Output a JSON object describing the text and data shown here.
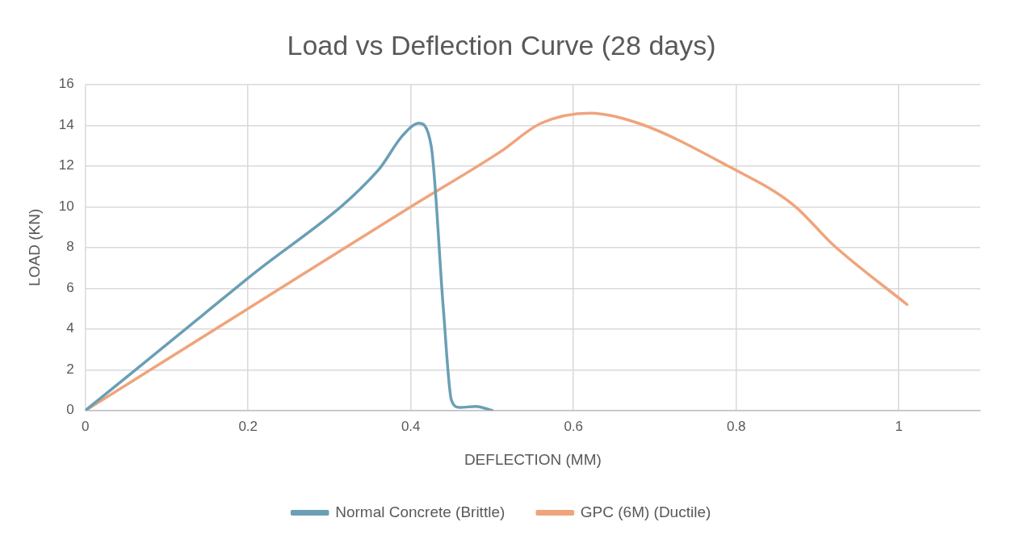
{
  "chart_data": {
    "type": "line",
    "title": "Load vs Deflection Curve (28 days)",
    "xlabel": "DEFLECTION (MM)",
    "ylabel": "LOAD (KN)",
    "xlim": [
      0,
      1.1
    ],
    "xticks": [
      0,
      0.2,
      0.4,
      0.6,
      0.8,
      1
    ],
    "ylim": [
      0,
      16
    ],
    "yticks": [
      0,
      2,
      4,
      6,
      8,
      10,
      12,
      14,
      16
    ],
    "grid": true,
    "legend": "bottom",
    "marker": "none",
    "line_style": "solid",
    "series": [
      {
        "name": "Normal Concrete (Brittle)",
        "color": "#6a9fb5",
        "x": [
          0,
          0.2,
          0.36,
          0.39,
          0.41,
          0.425,
          0.44,
          0.45,
          0.46,
          0.48,
          0.5
        ],
        "values": [
          0,
          6.5,
          11.8,
          13.5,
          14.1,
          13,
          5,
          0.5,
          0.15,
          0.2,
          0
        ]
      },
      {
        "name": "GPC (6M) (Ductile)",
        "color": "#f0a47c",
        "x": [
          0,
          0.2,
          0.4,
          0.51,
          0.56,
          0.62,
          0.68,
          0.79,
          0.87,
          0.92,
          1.01
        ],
        "values": [
          0,
          5,
          10,
          12.7,
          14.1,
          14.6,
          14.1,
          12,
          10.1,
          8.1,
          5.2
        ]
      }
    ]
  }
}
